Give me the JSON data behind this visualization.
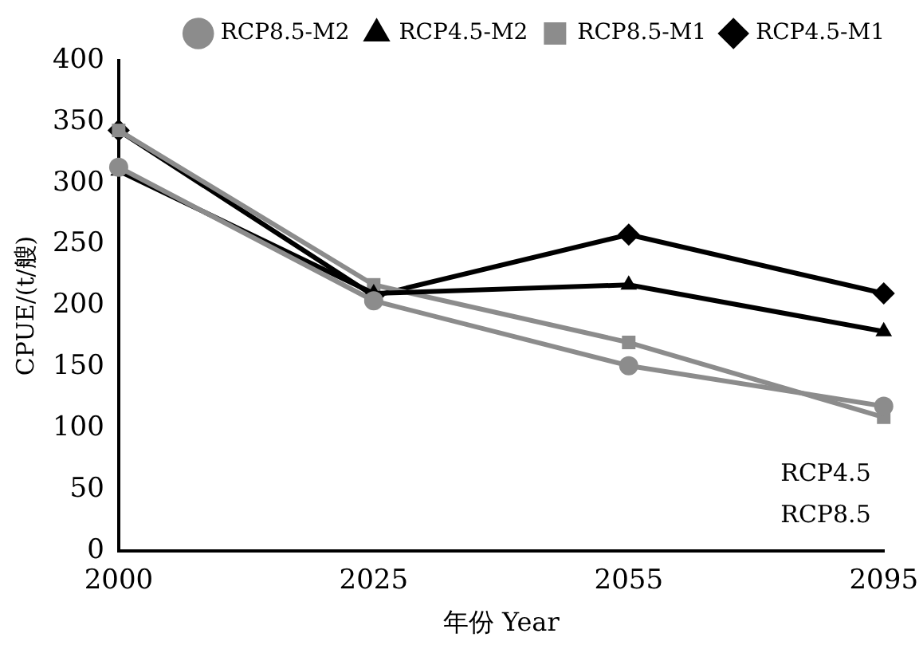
{
  "chart_data": {
    "type": "line",
    "xlabel": "年份 Year",
    "ylabel": "CPUE/(t/艘)",
    "categories": [
      "2000",
      "2025",
      "2055",
      "2095"
    ],
    "series": [
      {
        "name": "RCP4.5-M1",
        "color": "#000000",
        "marker": "diamond",
        "values": [
          343,
          208,
          258,
          210
        ]
      },
      {
        "name": "RCP8.5-M1",
        "color": "#8c8c8c",
        "marker": "square",
        "values": [
          343,
          217,
          170,
          109
        ]
      },
      {
        "name": "RCP4.5-M2",
        "color": "#000000",
        "marker": "triangle",
        "values": [
          310,
          210,
          217,
          179
        ]
      },
      {
        "name": "RCP8.5-M2",
        "color": "#8c8c8c",
        "marker": "circle",
        "values": [
          313,
          204,
          151,
          118
        ]
      }
    ],
    "ylim": [
      0,
      400
    ],
    "yticks": [
      0,
      50,
      100,
      150,
      200,
      250,
      300,
      350,
      400
    ],
    "grid": false,
    "legend": "top right",
    "line_style": "solid",
    "annotations": [
      "RCP4.5",
      "RCP8.5"
    ]
  }
}
